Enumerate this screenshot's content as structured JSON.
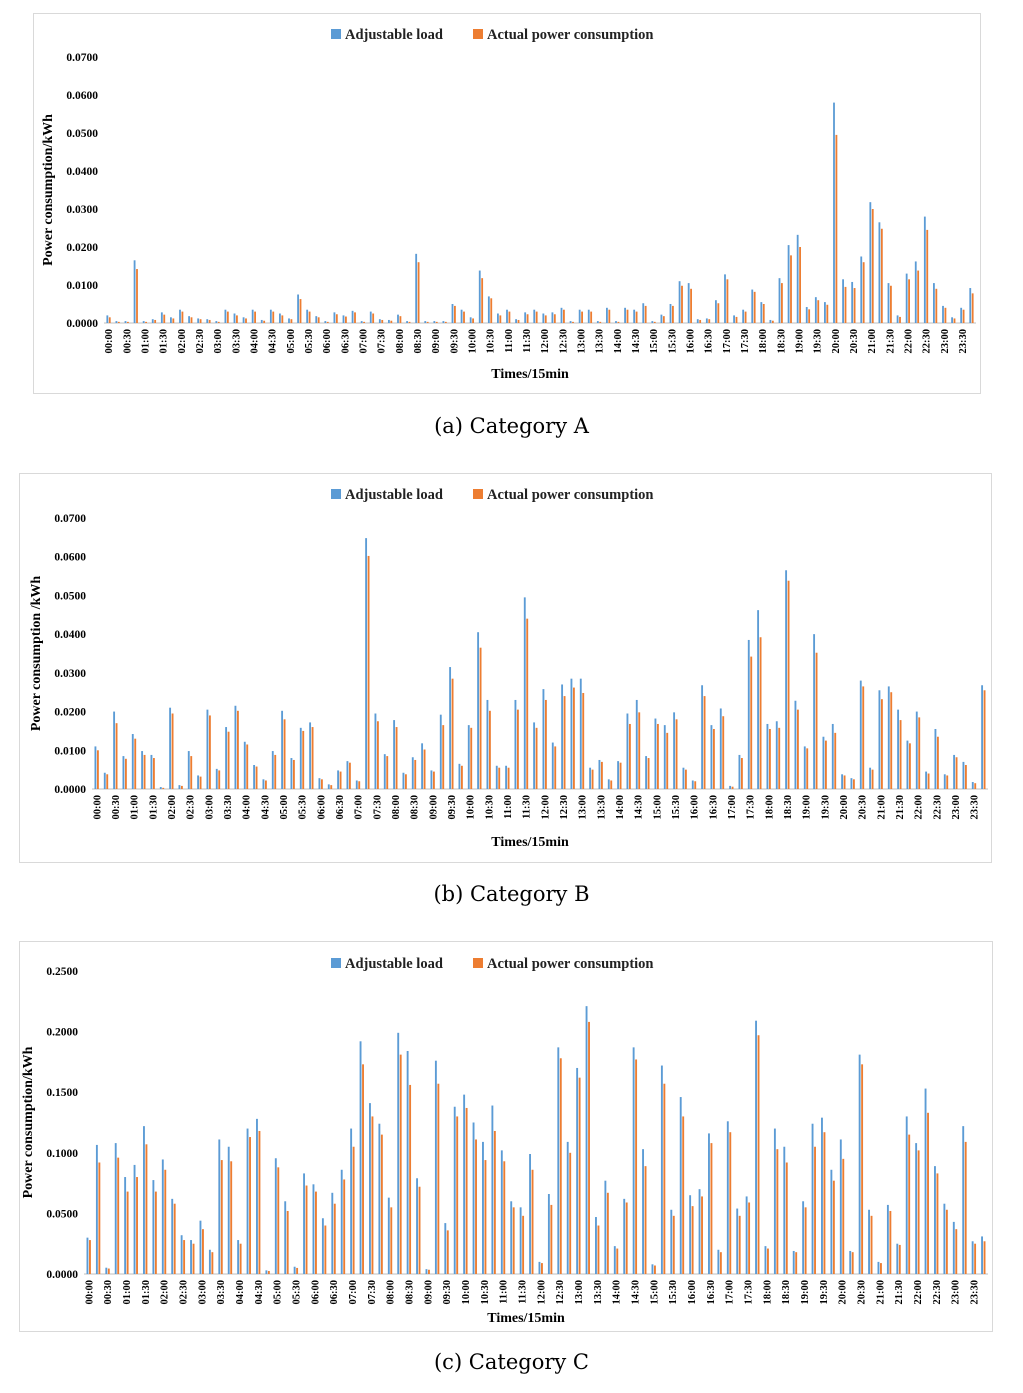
{
  "colors": {
    "adjustable": "#5b9bd5",
    "actual": "#ed7d31",
    "grid": "#d9d9d9",
    "axis": "#bfbfbf"
  },
  "chart_data": [
    {
      "id": "A",
      "type": "bar",
      "caption": "(a) Category A",
      "xlabel": "Times/15min",
      "ylabel": "Power consumption/kWh",
      "ylim": [
        0,
        0.07
      ],
      "yticks": [
        "0.0000",
        "0.0100",
        "0.0200",
        "0.0300",
        "0.0400",
        "0.0500",
        "0.0600",
        "0.0700"
      ],
      "xtick_labels": [
        "00:00",
        "00:30",
        "01:00",
        "01:30",
        "02:00",
        "02:30",
        "03:00",
        "03:30",
        "04:00",
        "04:30",
        "05:00",
        "05:30",
        "06:00",
        "06:30",
        "07:00",
        "07:30",
        "08:00",
        "08:30",
        "09:00",
        "09:30",
        "10:00",
        "10:30",
        "11:00",
        "11:30",
        "12:00",
        "12:30",
        "13:00",
        "13:30",
        "14:00",
        "14:30",
        "15:00",
        "15:30",
        "16:00",
        "16:30",
        "17:00",
        "17:30",
        "18:00",
        "18:30",
        "19:00",
        "19:30",
        "20:00",
        "20:30",
        "21:00",
        "21:30",
        "22:00",
        "22:30",
        "23:00",
        "23:30"
      ],
      "legend": [
        "Adjustable load",
        "Actual power consumption"
      ],
      "series": [
        {
          "name": "Adjustable load",
          "values": [
            0.002,
            0.0005,
            0.0005,
            0.0165,
            0.0005,
            0.001,
            0.0028,
            0.0015,
            0.0035,
            0.0018,
            0.0012,
            0.001,
            0.0005,
            0.0035,
            0.0025,
            0.0015,
            0.0035,
            0.0008,
            0.0035,
            0.0025,
            0.0012,
            0.0075,
            0.0035,
            0.0018,
            0.0005,
            0.0028,
            0.002,
            0.0032,
            0.0005,
            0.003,
            0.001,
            0.0008,
            0.0022,
            0.0005,
            0.0182,
            0.0005,
            0.0005,
            0.0005,
            0.005,
            0.0035,
            0.0015,
            0.0138,
            0.007,
            0.0025,
            0.0035,
            0.001,
            0.0028,
            0.0035,
            0.0025,
            0.0028,
            0.004,
            0.0005,
            0.0035,
            0.0035,
            0.0005,
            0.004,
            0.0005,
            0.004,
            0.0035,
            0.0052,
            0.0005,
            0.0022,
            0.005,
            0.011,
            0.0105,
            0.001,
            0.0012,
            0.006,
            0.0128,
            0.002,
            0.0035,
            0.0088,
            0.0055,
            0.0008,
            0.0118,
            0.0205,
            0.0232,
            0.0042,
            0.0068,
            0.0055,
            0.058,
            0.0115,
            0.0108,
            0.0175,
            0.0318,
            0.0265,
            0.0105,
            0.002,
            0.013,
            0.0162,
            0.028,
            0.0105,
            0.0045,
            0.0015,
            0.004,
            0.0092
          ]
        },
        {
          "name": "Actual power consumption",
          "values": [
            0.0015,
            0.0003,
            0.0003,
            0.0142,
            0.0003,
            0.0008,
            0.0022,
            0.0012,
            0.003,
            0.0015,
            0.001,
            0.0008,
            0.0003,
            0.003,
            0.002,
            0.0012,
            0.003,
            0.0006,
            0.003,
            0.002,
            0.001,
            0.0063,
            0.003,
            0.0015,
            0.0003,
            0.0023,
            0.0017,
            0.0028,
            0.0003,
            0.0025,
            0.0008,
            0.0006,
            0.0018,
            0.0003,
            0.016,
            0.0003,
            0.0003,
            0.0003,
            0.0045,
            0.003,
            0.0012,
            0.0118,
            0.0065,
            0.002,
            0.003,
            0.0008,
            0.0023,
            0.003,
            0.002,
            0.0023,
            0.0035,
            0.0003,
            0.003,
            0.003,
            0.0003,
            0.0035,
            0.0003,
            0.0035,
            0.003,
            0.0045,
            0.0003,
            0.0018,
            0.0045,
            0.0098,
            0.009,
            0.0008,
            0.001,
            0.0052,
            0.0115,
            0.0016,
            0.003,
            0.0082,
            0.005,
            0.0006,
            0.0105,
            0.0178,
            0.02,
            0.0036,
            0.006,
            0.0048,
            0.0495,
            0.0095,
            0.0092,
            0.016,
            0.03,
            0.0248,
            0.0098,
            0.0016,
            0.0115,
            0.0138,
            0.0245,
            0.009,
            0.004,
            0.0012,
            0.0035,
            0.0078
          ]
        }
      ]
    },
    {
      "id": "B",
      "type": "bar",
      "caption": "(b) Category B",
      "xlabel": "Times/15min",
      "ylabel": "Power consumption /kWh",
      "ylim": [
        0,
        0.07
      ],
      "yticks": [
        "0.0000",
        "0.0100",
        "0.0200",
        "0.0300",
        "0.0400",
        "0.0500",
        "0.0600",
        "0.0700"
      ],
      "xtick_labels": [
        "00:00",
        "00:30",
        "01:00",
        "01:30",
        "02:00",
        "02:30",
        "03:00",
        "03:30",
        "04:00",
        "04:30",
        "05:00",
        "05:30",
        "06:00",
        "06:30",
        "07:00",
        "07:30",
        "08:00",
        "08:30",
        "09:00",
        "09:30",
        "10:00",
        "10:30",
        "11:00",
        "11:30",
        "12:00",
        "12:30",
        "13:00",
        "13:30",
        "14:00",
        "14:30",
        "15:00",
        "15:30",
        "16:00",
        "16:30",
        "17:00",
        "17:30",
        "18:00",
        "18:30",
        "19:00",
        "19:30",
        "20:00",
        "20:30",
        "21:00",
        "21:30",
        "22:00",
        "22:30",
        "23:00",
        "23:30"
      ],
      "legend": [
        "Adjustable load",
        "Actual power consumption"
      ],
      "series": [
        {
          "name": "Adjustable load",
          "values": [
            0.011,
            0.0042,
            0.02,
            0.0085,
            0.0142,
            0.0098,
            0.0088,
            0.0005,
            0.021,
            0.001,
            0.0098,
            0.0035,
            0.0205,
            0.0052,
            0.016,
            0.0215,
            0.0122,
            0.0062,
            0.0025,
            0.0098,
            0.0202,
            0.008,
            0.0158,
            0.0172,
            0.0028,
            0.0012,
            0.0048,
            0.0072,
            0.0022,
            0.0648,
            0.0195,
            0.009,
            0.0178,
            0.0042,
            0.0082,
            0.0118,
            0.0048,
            0.0192,
            0.0315,
            0.0065,
            0.0165,
            0.0405,
            0.023,
            0.006,
            0.006,
            0.023,
            0.0495,
            0.0172,
            0.0258,
            0.012,
            0.027,
            0.0285,
            0.0285,
            0.0055,
            0.0075,
            0.0025,
            0.0072,
            0.0195,
            0.023,
            0.0085,
            0.0182,
            0.0165,
            0.0198,
            0.0055,
            0.0022,
            0.0268,
            0.0165,
            0.0208,
            0.0008,
            0.0088,
            0.0385,
            0.0462,
            0.0168,
            0.0175,
            0.0565,
            0.0228,
            0.011,
            0.04,
            0.0135,
            0.0168,
            0.0038,
            0.0028,
            0.028,
            0.0055,
            0.0255,
            0.0265,
            0.0205,
            0.0125,
            0.02,
            0.0045,
            0.0155,
            0.0038,
            0.0088,
            0.007,
            0.0018,
            0.0268
          ]
        },
        {
          "name": "Actual power consumption",
          "values": [
            0.01,
            0.0038,
            0.017,
            0.0078,
            0.013,
            0.0088,
            0.008,
            0.0003,
            0.0195,
            0.0008,
            0.0085,
            0.0032,
            0.019,
            0.0048,
            0.0148,
            0.0202,
            0.0115,
            0.0058,
            0.0022,
            0.0088,
            0.018,
            0.0075,
            0.015,
            0.016,
            0.0025,
            0.001,
            0.0045,
            0.0068,
            0.002,
            0.0602,
            0.0175,
            0.0085,
            0.016,
            0.0038,
            0.0075,
            0.0102,
            0.0045,
            0.0165,
            0.0285,
            0.006,
            0.0158,
            0.0365,
            0.0202,
            0.0055,
            0.0055,
            0.0205,
            0.044,
            0.0158,
            0.023,
            0.011,
            0.024,
            0.0262,
            0.0248,
            0.005,
            0.007,
            0.0022,
            0.0068,
            0.0168,
            0.0198,
            0.008,
            0.0168,
            0.0145,
            0.018,
            0.005,
            0.002,
            0.024,
            0.0155,
            0.0188,
            0.0006,
            0.008,
            0.0342,
            0.0392,
            0.0155,
            0.0158,
            0.0538,
            0.0205,
            0.0105,
            0.0352,
            0.0125,
            0.0145,
            0.0035,
            0.0025,
            0.0265,
            0.005,
            0.0232,
            0.025,
            0.0178,
            0.0118,
            0.0185,
            0.004,
            0.0135,
            0.0035,
            0.0082,
            0.0062,
            0.0015,
            0.0255
          ]
        }
      ]
    },
    {
      "id": "C",
      "type": "bar",
      "caption": "(c) Category C",
      "xlabel": "Times/15min",
      "ylabel": "Power consumption/kWh",
      "ylim": [
        0,
        0.25
      ],
      "yticks": [
        "0.0000",
        "0.0500",
        "0.1000",
        "0.1500",
        "0.2000",
        "0.2500"
      ],
      "xtick_labels": [
        "00:00",
        "00:30",
        "01:00",
        "01:30",
        "02:00",
        "02:30",
        "03:00",
        "03:30",
        "04:00",
        "04:30",
        "05:00",
        "05:30",
        "06:00",
        "06:30",
        "07:00",
        "07:30",
        "08:00",
        "08:30",
        "09:00",
        "09:30",
        "10:00",
        "10:30",
        "11:00",
        "11:30",
        "12:00",
        "12:30",
        "13:00",
        "13:30",
        "14:00",
        "14:30",
        "15:00",
        "15:30",
        "16:00",
        "16:30",
        "17:00",
        "17:30",
        "18:00",
        "18:30",
        "19:00",
        "19:30",
        "20:00",
        "20:30",
        "21:00",
        "21:30",
        "22:00",
        "22:30",
        "23:00",
        "23:30"
      ],
      "legend": [
        "Adjustable load",
        "Actual power consumption"
      ],
      "series": [
        {
          "name": "Adjustable load",
          "values": [
            0.03,
            0.1065,
            0.0052,
            0.108,
            0.08,
            0.09,
            0.122,
            0.0775,
            0.0945,
            0.062,
            0.032,
            0.028,
            0.044,
            0.02,
            0.111,
            0.105,
            0.028,
            0.12,
            0.128,
            0.003,
            0.0955,
            0.06,
            0.006,
            0.083,
            0.074,
            0.046,
            0.067,
            0.086,
            0.12,
            0.192,
            0.141,
            0.124,
            0.063,
            0.199,
            0.184,
            0.079,
            0.004,
            0.176,
            0.042,
            0.138,
            0.148,
            0.125,
            0.109,
            0.139,
            0.102,
            0.06,
            0.055,
            0.099,
            0.01,
            0.066,
            0.187,
            0.109,
            0.17,
            0.221,
            0.047,
            0.077,
            0.023,
            0.062,
            0.187,
            0.103,
            0.008,
            0.172,
            0.053,
            0.146,
            0.065,
            0.07,
            0.116,
            0.02,
            0.126,
            0.054,
            0.064,
            0.209,
            0.023,
            0.12,
            0.105,
            0.019,
            0.06,
            0.124,
            0.129,
            0.086,
            0.111,
            0.019,
            0.181,
            0.053,
            0.01,
            0.057,
            0.025,
            0.13,
            0.108,
            0.153,
            0.089,
            0.058,
            0.043,
            0.122,
            0.027,
            0.031
          ]
        },
        {
          "name": "Actual power consumption",
          "values": [
            0.028,
            0.092,
            0.0045,
            0.096,
            0.068,
            0.08,
            0.107,
            0.068,
            0.086,
            0.058,
            0.028,
            0.025,
            0.037,
            0.018,
            0.094,
            0.093,
            0.025,
            0.113,
            0.118,
            0.0025,
            0.088,
            0.052,
            0.005,
            0.073,
            0.068,
            0.04,
            0.058,
            0.078,
            0.105,
            0.173,
            0.13,
            0.115,
            0.055,
            0.181,
            0.156,
            0.072,
            0.0035,
            0.157,
            0.036,
            0.13,
            0.137,
            0.111,
            0.094,
            0.118,
            0.093,
            0.055,
            0.048,
            0.086,
            0.009,
            0.057,
            0.178,
            0.1,
            0.162,
            0.208,
            0.04,
            0.067,
            0.021,
            0.059,
            0.177,
            0.089,
            0.007,
            0.157,
            0.048,
            0.13,
            0.056,
            0.064,
            0.108,
            0.018,
            0.117,
            0.048,
            0.059,
            0.197,
            0.021,
            0.103,
            0.092,
            0.018,
            0.055,
            0.105,
            0.117,
            0.077,
            0.095,
            0.018,
            0.173,
            0.048,
            0.009,
            0.052,
            0.024,
            0.115,
            0.102,
            0.133,
            0.083,
            0.053,
            0.037,
            0.109,
            0.025,
            0.027
          ]
        }
      ]
    }
  ]
}
